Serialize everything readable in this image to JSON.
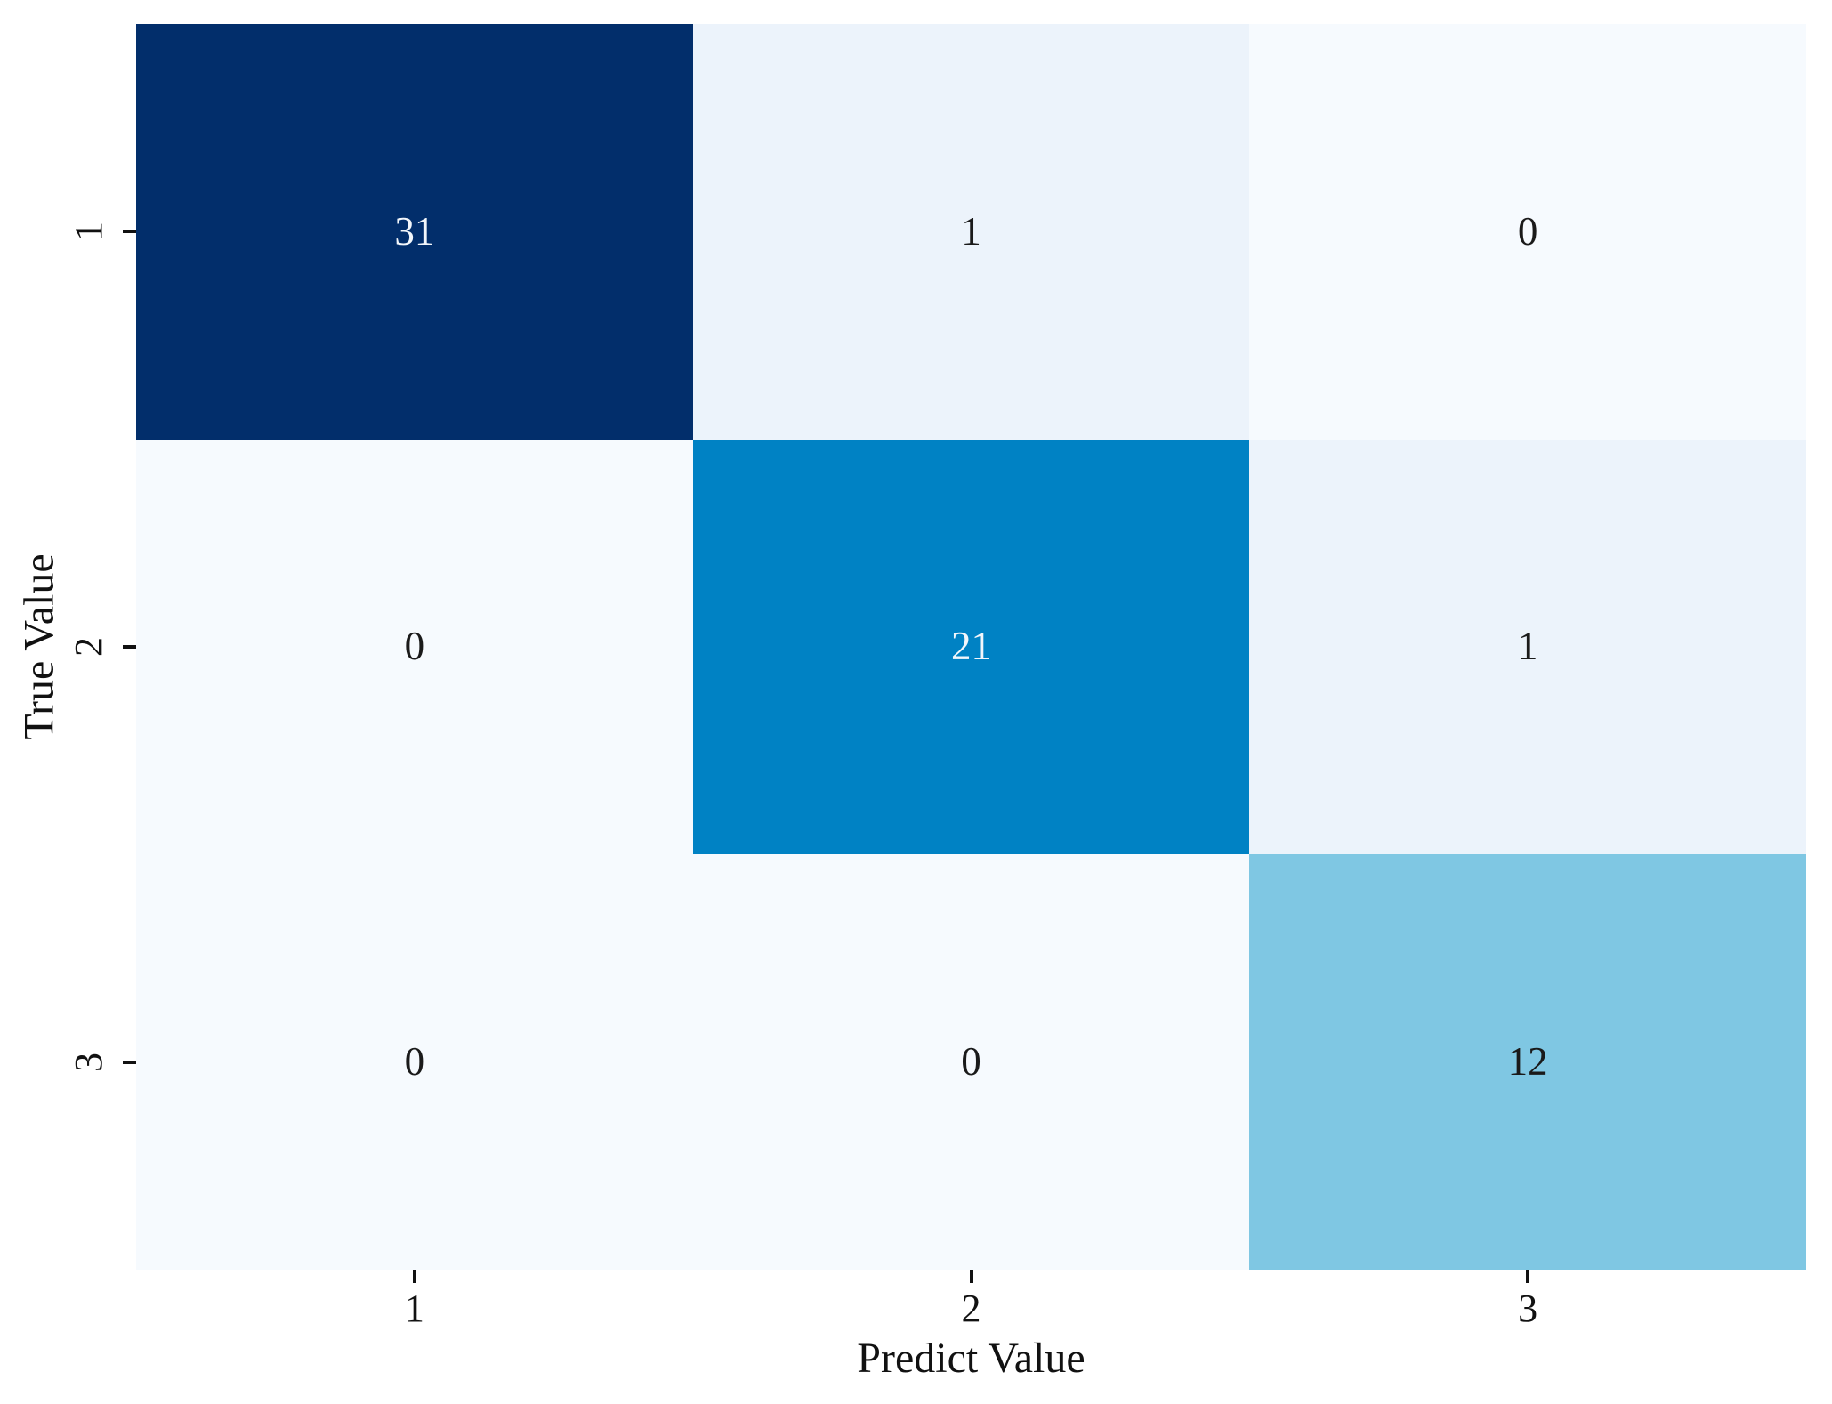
{
  "chart_data": {
    "type": "heatmap",
    "title": "",
    "xlabel": "Predict Value",
    "ylabel": "True Value",
    "x_tick_labels": [
      "1",
      "2",
      "3"
    ],
    "y_tick_labels": [
      "1",
      "2",
      "3"
    ],
    "matrix": [
      [
        31,
        1,
        0
      ],
      [
        0,
        21,
        1
      ],
      [
        0,
        0,
        12
      ]
    ],
    "vmin": 0,
    "vmax": 31,
    "colormap": "Blues",
    "legend_position": "none",
    "grid": false,
    "cell_colors": [
      [
        "#022e6b",
        "#ecf3fb",
        "#f6fafe"
      ],
      [
        "#f6fafe",
        "#0082c4",
        "#ecf3fb"
      ],
      [
        "#f6fafe",
        "#f6fafe",
        "#7fc7e3"
      ]
    ],
    "cell_text_colors": [
      [
        "#f2f6fb",
        "#1a1a1a",
        "#1a1a1a"
      ],
      [
        "#1a1a1a",
        "#f2f6fb",
        "#1a1a1a"
      ],
      [
        "#1a1a1a",
        "#1a1a1a",
        "#1a1a1a"
      ]
    ],
    "axis_text_color": "#111111",
    "background_color": "#ffffff"
  }
}
